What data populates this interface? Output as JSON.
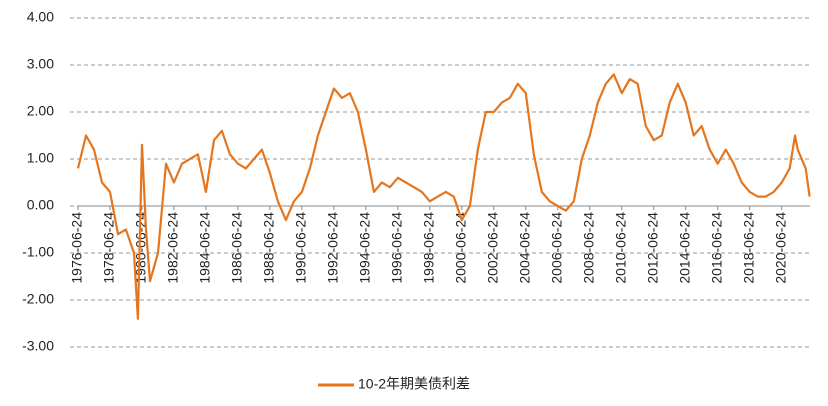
{
  "chart_data": {
    "type": "line",
    "x": [
      "1976-06-24",
      "1976-12-24",
      "1977-06-24",
      "1977-12-24",
      "1978-06-24",
      "1978-12-24",
      "1979-06-24",
      "1979-12-24",
      "1980-03-24",
      "1980-06-24",
      "1980-09-24",
      "1980-12-24",
      "1981-06-24",
      "1981-12-24",
      "1982-06-24",
      "1982-12-24",
      "1983-06-24",
      "1983-12-24",
      "1984-06-24",
      "1984-12-24",
      "1985-06-24",
      "1985-12-24",
      "1986-06-24",
      "1986-12-24",
      "1987-06-24",
      "1987-12-24",
      "1988-06-24",
      "1988-12-24",
      "1989-06-24",
      "1989-12-24",
      "1990-06-24",
      "1990-12-24",
      "1991-06-24",
      "1991-12-24",
      "1992-06-24",
      "1992-12-24",
      "1993-06-24",
      "1993-12-24",
      "1994-06-24",
      "1994-12-24",
      "1995-06-24",
      "1995-12-24",
      "1996-06-24",
      "1996-12-24",
      "1997-06-24",
      "1997-12-24",
      "1998-06-24",
      "1998-12-24",
      "1999-06-24",
      "1999-12-24",
      "2000-06-24",
      "2000-12-24",
      "2001-06-24",
      "2001-12-24",
      "2002-06-24",
      "2002-12-24",
      "2003-06-24",
      "2003-12-24",
      "2004-06-24",
      "2004-12-24",
      "2005-06-24",
      "2005-12-24",
      "2006-06-24",
      "2006-12-24",
      "2007-06-24",
      "2007-12-24",
      "2008-06-24",
      "2008-12-24",
      "2009-06-24",
      "2009-12-24",
      "2010-06-24",
      "2010-12-24",
      "2011-06-24",
      "2011-12-24",
      "2012-06-24",
      "2012-12-24",
      "2013-06-24",
      "2013-12-24",
      "2014-06-24",
      "2014-12-24",
      "2015-06-24",
      "2015-12-24",
      "2016-06-24",
      "2016-12-24",
      "2017-06-24",
      "2017-12-24",
      "2018-06-24",
      "2018-12-24",
      "2019-06-24",
      "2019-12-24",
      "2020-06-24",
      "2020-12-24",
      "2021-04-24",
      "2021-06-24",
      "2021-12-24",
      "2022-03-24"
    ],
    "series": [
      {
        "name": "10-2年期美债利差",
        "color": "#e4761f",
        "values": [
          0.8,
          1.5,
          1.2,
          0.5,
          0.3,
          -0.6,
          -0.5,
          -1.0,
          -2.4,
          1.3,
          -0.5,
          -1.6,
          -1.0,
          0.9,
          0.5,
          0.9,
          1.0,
          1.1,
          0.3,
          1.4,
          1.6,
          1.1,
          0.9,
          0.8,
          1.0,
          1.2,
          0.7,
          0.1,
          -0.3,
          0.1,
          0.3,
          0.8,
          1.5,
          2.0,
          2.5,
          2.3,
          2.4,
          2.0,
          1.2,
          0.3,
          0.5,
          0.4,
          0.6,
          0.5,
          0.4,
          0.3,
          0.1,
          0.2,
          0.3,
          0.2,
          -0.3,
          0.0,
          1.2,
          2.0,
          2.0,
          2.2,
          2.3,
          2.6,
          2.4,
          1.1,
          0.3,
          0.1,
          0.0,
          -0.1,
          0.1,
          1.0,
          1.5,
          2.2,
          2.6,
          2.8,
          2.4,
          2.7,
          2.6,
          1.7,
          1.4,
          1.5,
          2.2,
          2.6,
          2.2,
          1.5,
          1.7,
          1.2,
          0.9,
          1.2,
          0.9,
          0.5,
          0.3,
          0.2,
          0.2,
          0.3,
          0.5,
          0.8,
          1.5,
          1.2,
          0.8,
          0.2
        ]
      }
    ],
    "xlim": [
      "1976-06-24",
      "2022-04-01"
    ],
    "xticks": [
      "1976-06-24",
      "1978-06-24",
      "1980-06-24",
      "1982-06-24",
      "1984-06-24",
      "1986-06-24",
      "1988-06-24",
      "1990-06-24",
      "1992-06-24",
      "1994-06-24",
      "1996-06-24",
      "1998-06-24",
      "2000-06-24",
      "2002-06-24",
      "2004-06-24",
      "2006-06-24",
      "2008-06-24",
      "2010-06-24",
      "2012-06-24",
      "2014-06-24",
      "2016-06-24",
      "2018-06-24",
      "2020-06-24"
    ],
    "ylim": [
      -3,
      4
    ],
    "yticks": [
      {
        "value": 4,
        "label": "4.00"
      },
      {
        "value": 3,
        "label": "3.00"
      },
      {
        "value": 2,
        "label": "2.00"
      },
      {
        "value": 1,
        "label": "1.00"
      },
      {
        "value": 0,
        "label": "0.00"
      },
      {
        "value": -1,
        "label": "-1.00"
      },
      {
        "value": -2,
        "label": "-2.00"
      },
      {
        "value": -3,
        "label": "-3.00"
      }
    ],
    "grid": true,
    "legend": "bottom"
  }
}
